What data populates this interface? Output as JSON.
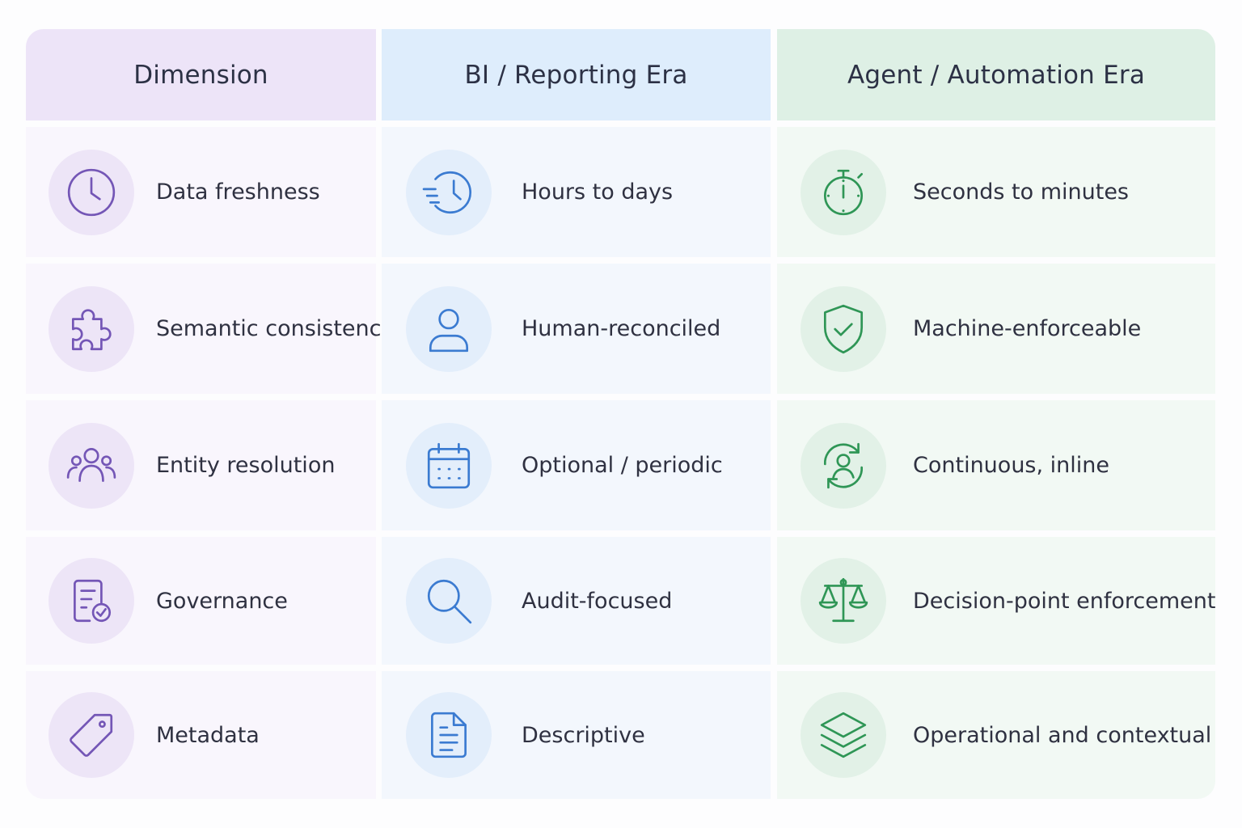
{
  "headers": {
    "dimension": "Dimension",
    "bi": "BI / Reporting Era",
    "agent": "Agent / Automation Era"
  },
  "colors": {
    "dimension_accent": "#7456b6",
    "bi_accent": "#3b7bd1",
    "agent_accent": "#2f9656"
  },
  "rows": [
    {
      "dimension": {
        "label": "Data freshness",
        "icon": "clock-icon"
      },
      "bi": {
        "label": "Hours to days",
        "icon": "fast-clock-icon"
      },
      "agent": {
        "label": "Seconds to minutes",
        "icon": "stopwatch-icon"
      }
    },
    {
      "dimension": {
        "label": "Semantic consistency",
        "icon": "puzzle-piece-icon"
      },
      "bi": {
        "label": "Human-reconciled",
        "icon": "user-icon"
      },
      "agent": {
        "label": "Machine-enforceable",
        "icon": "shield-check-icon"
      }
    },
    {
      "dimension": {
        "label": "Entity resolution",
        "icon": "users-group-icon"
      },
      "bi": {
        "label": "Optional / periodic",
        "icon": "calendar-icon"
      },
      "agent": {
        "label": "Continuous, inline",
        "icon": "user-sync-icon"
      }
    },
    {
      "dimension": {
        "label": "Governance",
        "icon": "document-check-icon"
      },
      "bi": {
        "label": "Audit-focused",
        "icon": "search-icon"
      },
      "agent": {
        "label": "Decision-point enforcement",
        "icon": "scales-icon"
      }
    },
    {
      "dimension": {
        "label": "Metadata",
        "icon": "tag-icon"
      },
      "bi": {
        "label": "Descriptive",
        "icon": "document-icon"
      },
      "agent": {
        "label": "Operational and contextual",
        "icon": "layers-icon"
      }
    }
  ]
}
